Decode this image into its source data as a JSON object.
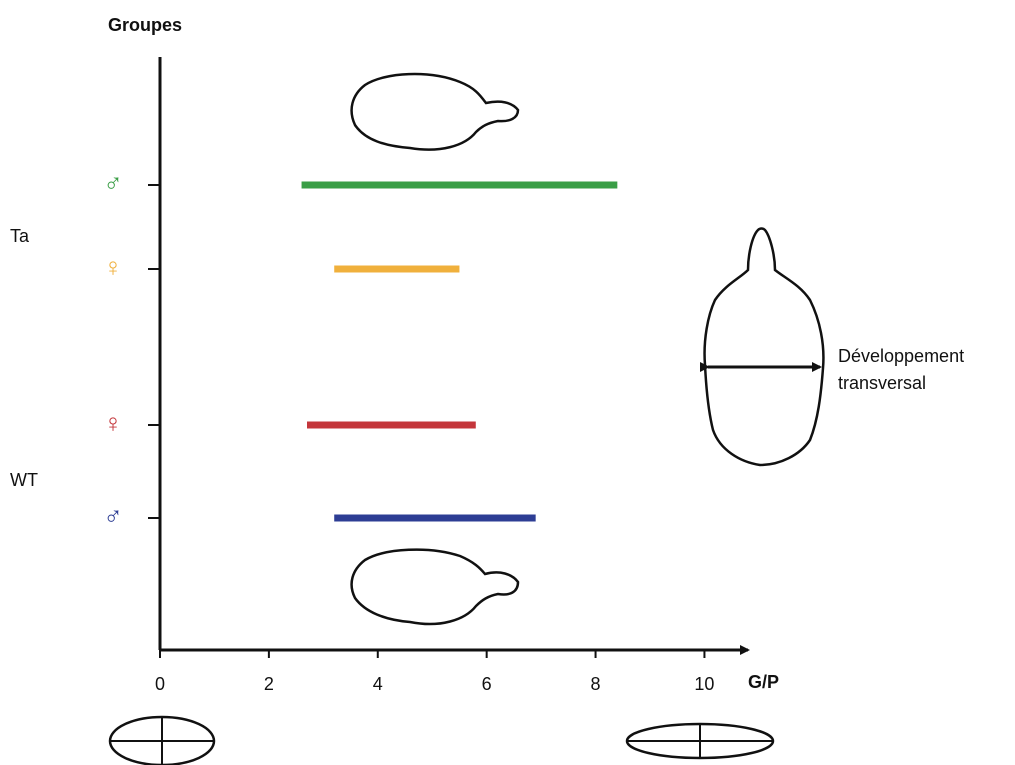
{
  "chart_data": {
    "type": "range",
    "y_label": "Groupes",
    "x_label": "G/P",
    "xlim": [
      0,
      10.8
    ],
    "xticks": [
      0,
      2,
      4,
      6,
      8,
      10
    ],
    "annotation": [
      "Développement",
      "transversal"
    ],
    "groups": [
      {
        "label": "Ta",
        "bars": [
          {
            "label": "♂",
            "color": "#3a9e46",
            "start": 2.6,
            "end": 8.4
          },
          {
            "label": "♀",
            "color": "#f0b03c",
            "start": 3.2,
            "end": 5.5
          }
        ]
      },
      {
        "label": "WT",
        "bars": [
          {
            "label": "♀",
            "color": "#c4363b",
            "start": 2.7,
            "end": 5.8
          },
          {
            "label": "♂",
            "color": "#2d3d94",
            "start": 3.2,
            "end": 6.9
          }
        ]
      }
    ]
  }
}
